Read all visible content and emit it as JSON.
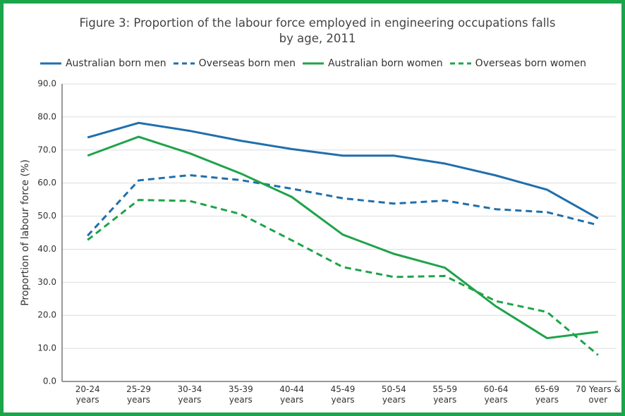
{
  "chart_data": {
    "type": "line",
    "title": "Figure 3: Proportion of the labour force employed in engineering occupations falls by age, 2011",
    "y_label": "Proportion of labour force (%)",
    "categories": [
      "20-24 years",
      "25-29 years",
      "30-34 years",
      "35-39 years",
      "40-44 years",
      "45-49 years",
      "50-54 years",
      "55-59 years",
      "60-64 years",
      "65-69 years",
      "70 Years & over"
    ],
    "series": [
      {
        "name": "Australian born men",
        "color": "#1f6fad",
        "dashed": false,
        "values": [
          73.8,
          78.2,
          75.8,
          72.8,
          70.3,
          68.3,
          68.3,
          65.9,
          62.3,
          58.0,
          49.3
        ]
      },
      {
        "name": "Overseas born men",
        "color": "#1f6fad",
        "dashed": true,
        "values": [
          44.1,
          60.8,
          62.4,
          60.9,
          58.3,
          55.4,
          53.8,
          54.7,
          52.1,
          51.2,
          47.3
        ]
      },
      {
        "name": "Australian born women",
        "color": "#1fa34a",
        "dashed": false,
        "values": [
          68.3,
          74.0,
          69.0,
          62.9,
          55.8,
          44.4,
          38.6,
          34.4,
          22.7,
          13.1,
          15.0
        ]
      },
      {
        "name": "Overseas born women",
        "color": "#1fa34a",
        "dashed": true,
        "values": [
          42.8,
          54.9,
          54.6,
          50.6,
          42.7,
          34.6,
          31.6,
          31.9,
          24.3,
          21.0,
          8.0
        ]
      }
    ],
    "ylim": [
      0,
      90
    ],
    "yticks": [
      {
        "value": 0,
        "label": "0.0"
      },
      {
        "value": 10,
        "label": "10.0"
      },
      {
        "value": 20,
        "label": "20.0"
      },
      {
        "value": 30,
        "label": "30.0"
      },
      {
        "value": 40,
        "label": "40.0"
      },
      {
        "value": 50,
        "label": "50.0"
      },
      {
        "value": 60,
        "label": "60.0"
      },
      {
        "value": 70,
        "label": "70.0"
      },
      {
        "value": 80,
        "label": "80.0"
      },
      {
        "value": 90,
        "label": "90.0"
      }
    ],
    "grid": true
  }
}
